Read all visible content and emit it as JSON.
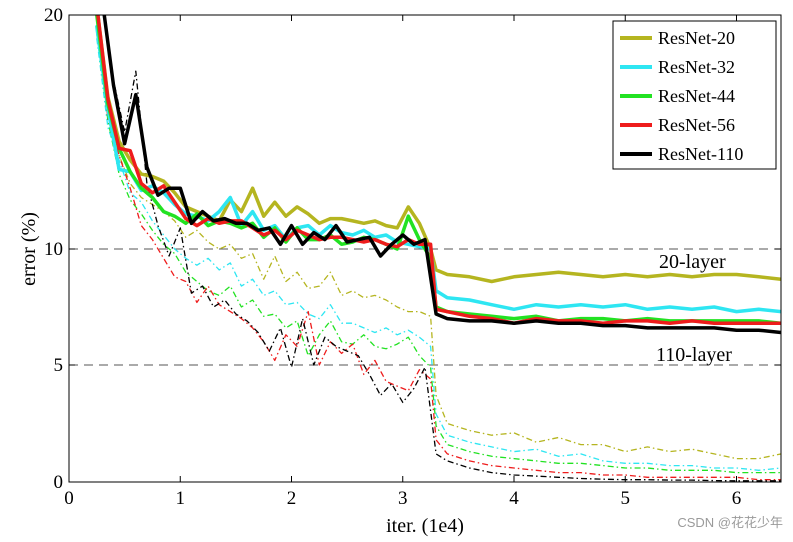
{
  "chart_data": {
    "type": "line",
    "xlabel": "iter. (1e4)",
    "ylabel": "error (%)",
    "xlim": [
      0,
      6.4
    ],
    "ylim": [
      0,
      20
    ],
    "x_ticks": [
      "0",
      "1",
      "2",
      "3",
      "4",
      "5",
      "6"
    ],
    "y_ticks": [
      "0",
      "5",
      "10",
      "20"
    ],
    "y_tick_values": [
      0,
      5,
      10,
      20
    ],
    "grid": "horizontal dashed at 5, 10, 20",
    "legend": "top-right",
    "annotations": [
      "20-layer",
      "110-layer"
    ],
    "series": [
      {
        "name": "ResNet-20",
        "color": "#b5b520",
        "test": {
          "x": [
            0.25,
            0.35,
            0.45,
            0.55,
            0.65,
            0.75,
            0.85,
            0.95,
            1.05,
            1.15,
            1.25,
            1.35,
            1.45,
            1.55,
            1.65,
            1.75,
            1.85,
            1.95,
            2.05,
            2.15,
            2.25,
            2.35,
            2.45,
            2.55,
            2.65,
            2.75,
            2.85,
            2.95,
            3.05,
            3.15,
            3.25,
            3.3,
            3.4,
            3.6,
            3.8,
            4.0,
            4.2,
            4.4,
            4.6,
            4.8,
            5.0,
            5.2,
            5.4,
            5.6,
            5.8,
            6.0,
            6.2,
            6.4
          ],
          "y": [
            20.4,
            16.5,
            14.6,
            13.8,
            13.2,
            13.1,
            12.9,
            12.4,
            11.8,
            11.6,
            11.4,
            11.2,
            12.1,
            11.6,
            12.6,
            11.4,
            12.0,
            11.4,
            11.8,
            11.5,
            11.1,
            11.3,
            11.3,
            11.2,
            11.1,
            11.2,
            11.0,
            10.9,
            11.8,
            11.1,
            10.0,
            9.1,
            8.9,
            8.8,
            8.6,
            8.8,
            8.9,
            9.0,
            8.9,
            8.8,
            8.9,
            8.8,
            8.9,
            8.8,
            8.9,
            8.9,
            8.8,
            8.7
          ]
        },
        "train": {
          "x": [
            0.25,
            0.35,
            0.45,
            0.55,
            0.65,
            0.75,
            0.85,
            0.95,
            1.05,
            1.15,
            1.25,
            1.35,
            1.45,
            1.55,
            1.65,
            1.75,
            1.85,
            1.95,
            2.05,
            2.15,
            2.25,
            2.35,
            2.45,
            2.55,
            2.65,
            2.75,
            2.85,
            2.95,
            3.05,
            3.15,
            3.25,
            3.3,
            3.4,
            3.6,
            3.8,
            4.0,
            4.2,
            4.4,
            4.6,
            4.8,
            5.0,
            5.2,
            5.4,
            5.6,
            5.8,
            6.0,
            6.2,
            6.4
          ],
          "y": [
            19.5,
            15.8,
            14.0,
            12.8,
            12.2,
            11.9,
            11.6,
            11.2,
            10.5,
            10.8,
            10.3,
            10.0,
            10.2,
            9.6,
            9.8,
            8.7,
            9.7,
            8.6,
            9.0,
            8.3,
            8.4,
            9.0,
            8.0,
            8.2,
            7.9,
            8.0,
            7.8,
            7.5,
            7.3,
            7.3,
            7.1,
            3.7,
            2.5,
            2.2,
            2.0,
            2.1,
            1.7,
            1.9,
            1.6,
            1.6,
            1.3,
            1.5,
            1.3,
            1.4,
            1.2,
            1.0,
            1.0,
            1.2
          ]
        }
      },
      {
        "name": "ResNet-32",
        "color": "#2ee6f2",
        "test": {
          "x": [
            0.25,
            0.35,
            0.45,
            0.55,
            0.65,
            0.75,
            0.85,
            0.95,
            1.05,
            1.15,
            1.25,
            1.35,
            1.45,
            1.55,
            1.65,
            1.75,
            1.85,
            1.95,
            2.05,
            2.15,
            2.25,
            2.35,
            2.45,
            2.55,
            2.65,
            2.75,
            2.85,
            2.95,
            3.05,
            3.15,
            3.25,
            3.3,
            3.4,
            3.6,
            3.8,
            4.0,
            4.2,
            4.4,
            4.6,
            4.8,
            5.0,
            5.2,
            5.4,
            5.6,
            5.8,
            6.0,
            6.2,
            6.4
          ],
          "y": [
            19.5,
            16.0,
            13.4,
            13.3,
            12.5,
            12.7,
            12.4,
            11.9,
            11.5,
            11.4,
            11.2,
            11.6,
            12.2,
            11.0,
            11.6,
            10.8,
            11.0,
            10.4,
            10.9,
            11.0,
            10.6,
            11.0,
            10.7,
            10.6,
            10.8,
            10.5,
            10.6,
            10.3,
            10.2,
            10.1,
            10.0,
            8.2,
            7.9,
            7.8,
            7.6,
            7.4,
            7.6,
            7.5,
            7.6,
            7.5,
            7.6,
            7.4,
            7.5,
            7.4,
            7.5,
            7.3,
            7.4,
            7.3
          ]
        },
        "train": {
          "x": [
            0.25,
            0.35,
            0.45,
            0.55,
            0.65,
            0.75,
            0.85,
            0.95,
            1.05,
            1.15,
            1.25,
            1.35,
            1.45,
            1.55,
            1.65,
            1.75,
            1.85,
            1.95,
            2.05,
            2.15,
            2.25,
            2.35,
            2.45,
            2.55,
            2.65,
            2.75,
            2.85,
            2.95,
            3.05,
            3.15,
            3.25,
            3.3,
            3.4,
            3.6,
            3.8,
            4.0,
            4.2,
            4.4,
            4.6,
            4.8,
            5.0,
            5.2,
            5.4,
            5.6,
            5.8,
            6.0,
            6.2,
            6.4
          ],
          "y": [
            19.0,
            15.2,
            13.8,
            12.4,
            12.0,
            11.2,
            10.6,
            10.0,
            9.6,
            9.3,
            9.6,
            9.1,
            9.4,
            8.4,
            8.7,
            8.0,
            8.2,
            7.6,
            7.7,
            7.2,
            7.0,
            7.6,
            6.8,
            6.8,
            6.6,
            6.4,
            6.6,
            6.3,
            6.5,
            6.2,
            5.8,
            2.9,
            2.0,
            1.7,
            1.5,
            1.3,
            1.4,
            1.1,
            1.2,
            0.9,
            0.8,
            0.8,
            0.7,
            0.7,
            0.6,
            0.6,
            0.5,
            0.6
          ]
        }
      },
      {
        "name": "ResNet-44",
        "color": "#22e222",
        "test": {
          "x": [
            0.25,
            0.35,
            0.45,
            0.55,
            0.65,
            0.75,
            0.85,
            0.95,
            1.05,
            1.15,
            1.25,
            1.35,
            1.45,
            1.55,
            1.65,
            1.75,
            1.85,
            1.95,
            2.05,
            2.15,
            2.25,
            2.35,
            2.45,
            2.55,
            2.65,
            2.75,
            2.85,
            2.95,
            3.05,
            3.15,
            3.25,
            3.3,
            3.4,
            3.6,
            3.8,
            4.0,
            4.2,
            4.4,
            4.6,
            4.8,
            5.0,
            5.2,
            5.4,
            5.6,
            5.8,
            6.0,
            6.2,
            6.4
          ],
          "y": [
            20.0,
            16.2,
            14.3,
            13.3,
            12.6,
            12.2,
            11.6,
            11.4,
            11.1,
            11.5,
            11.0,
            11.2,
            11.1,
            10.9,
            11.1,
            10.5,
            10.9,
            10.3,
            10.9,
            10.4,
            10.4,
            10.6,
            10.2,
            10.3,
            10.5,
            10.4,
            10.2,
            10.0,
            11.4,
            10.4,
            9.6,
            7.5,
            7.3,
            7.2,
            7.1,
            7.0,
            7.1,
            6.9,
            7.0,
            7.0,
            6.9,
            7.0,
            6.9,
            6.9,
            6.9,
            6.9,
            6.9,
            6.8
          ]
        },
        "train": {
          "x": [
            0.25,
            0.35,
            0.45,
            0.55,
            0.65,
            0.75,
            0.85,
            0.95,
            1.05,
            1.15,
            1.25,
            1.35,
            1.45,
            1.55,
            1.65,
            1.75,
            1.85,
            1.95,
            2.05,
            2.15,
            2.25,
            2.35,
            2.45,
            2.55,
            2.65,
            2.75,
            2.85,
            2.95,
            3.05,
            3.15,
            3.25,
            3.3,
            3.4,
            3.6,
            3.8,
            4.0,
            4.2,
            4.4,
            4.6,
            4.8,
            5.0,
            5.2,
            5.4,
            5.6,
            5.8,
            6.0,
            6.2,
            6.4
          ],
          "y": [
            19.2,
            15.5,
            13.2,
            12.1,
            11.5,
            10.8,
            10.2,
            9.8,
            9.0,
            8.6,
            8.2,
            8.0,
            8.4,
            7.5,
            7.8,
            7.1,
            7.2,
            6.6,
            6.9,
            5.4,
            6.3,
            6.9,
            6.0,
            5.9,
            6.3,
            5.8,
            5.7,
            5.9,
            6.2,
            5.4,
            4.9,
            2.4,
            1.6,
            1.3,
            1.1,
            1.0,
            0.9,
            0.8,
            0.8,
            0.7,
            0.6,
            0.6,
            0.5,
            0.5,
            0.5,
            0.4,
            0.4,
            0.4
          ]
        }
      },
      {
        "name": "ResNet-56",
        "color": "#ee1c1c",
        "test": {
          "x": [
            0.25,
            0.35,
            0.45,
            0.55,
            0.65,
            0.75,
            0.85,
            0.95,
            1.05,
            1.15,
            1.25,
            1.35,
            1.45,
            1.55,
            1.65,
            1.75,
            1.85,
            1.95,
            2.05,
            2.15,
            2.25,
            2.35,
            2.45,
            2.55,
            2.65,
            2.75,
            2.85,
            2.95,
            3.05,
            3.15,
            3.25,
            3.3,
            3.4,
            3.6,
            3.8,
            4.0,
            4.2,
            4.4,
            4.6,
            4.8,
            5.0,
            5.2,
            5.4,
            5.6,
            5.8,
            6.0,
            6.2,
            6.4
          ],
          "y": [
            20.4,
            16.4,
            14.3,
            14.2,
            12.8,
            12.4,
            12.7,
            12.0,
            11.3,
            11.0,
            11.3,
            11.1,
            11.2,
            11.2,
            10.9,
            10.6,
            10.8,
            10.4,
            10.8,
            10.6,
            10.4,
            10.5,
            10.5,
            10.4,
            10.3,
            10.4,
            10.2,
            10.1,
            10.4,
            10.2,
            10.2,
            7.4,
            7.3,
            7.1,
            7.0,
            6.8,
            7.0,
            6.9,
            6.9,
            6.8,
            6.9,
            6.9,
            6.8,
            6.9,
            6.8,
            6.8,
            6.8,
            6.8
          ]
        },
        "train": {
          "x": [
            0.25,
            0.35,
            0.45,
            0.55,
            0.65,
            0.75,
            0.85,
            0.95,
            1.05,
            1.15,
            1.25,
            1.35,
            1.45,
            1.55,
            1.65,
            1.75,
            1.85,
            1.95,
            2.05,
            2.15,
            2.25,
            2.35,
            2.45,
            2.55,
            2.65,
            2.75,
            2.85,
            2.95,
            3.05,
            3.15,
            3.25,
            3.3,
            3.4,
            3.6,
            3.8,
            4.0,
            4.2,
            4.4,
            4.6,
            4.8,
            5.0,
            5.2,
            5.4,
            5.6,
            5.8,
            6.0,
            6.2,
            6.4
          ],
          "y": [
            19.4,
            15.6,
            14.0,
            12.6,
            11.0,
            10.4,
            9.6,
            8.8,
            8.6,
            7.7,
            8.4,
            7.6,
            7.3,
            7.0,
            6.6,
            6.0,
            5.2,
            6.3,
            5.8,
            7.3,
            5.0,
            6.0,
            5.5,
            5.9,
            4.6,
            5.2,
            4.3,
            4.1,
            3.9,
            4.8,
            4.4,
            1.8,
            1.2,
            0.9,
            0.7,
            0.6,
            0.5,
            0.4,
            0.4,
            0.3,
            0.3,
            0.2,
            0.2,
            0.2,
            0.2,
            0.2,
            0.1,
            0.1
          ]
        }
      },
      {
        "name": "ResNet-110",
        "color": "#000000",
        "test": {
          "x": [
            0.3,
            0.4,
            0.5,
            0.6,
            0.7,
            0.8,
            0.9,
            1.0,
            1.1,
            1.2,
            1.3,
            1.4,
            1.5,
            1.6,
            1.7,
            1.8,
            1.9,
            2.0,
            2.1,
            2.2,
            2.3,
            2.4,
            2.5,
            2.6,
            2.7,
            2.8,
            2.9,
            3.0,
            3.1,
            3.2,
            3.3,
            3.4,
            3.6,
            3.8,
            4.0,
            4.2,
            4.4,
            4.6,
            4.8,
            5.0,
            5.2,
            5.4,
            5.6,
            5.8,
            6.0,
            6.2,
            6.4
          ],
          "y": [
            20.6,
            17.0,
            14.5,
            16.6,
            13.5,
            12.3,
            12.6,
            12.6,
            11.1,
            11.6,
            11.2,
            11.3,
            11.1,
            11.1,
            10.8,
            10.9,
            10.2,
            11.0,
            10.2,
            10.7,
            10.4,
            11.0,
            10.3,
            10.4,
            10.5,
            9.7,
            10.2,
            10.6,
            10.2,
            10.4,
            7.2,
            7.0,
            6.9,
            6.9,
            6.8,
            6.9,
            6.8,
            6.8,
            6.7,
            6.7,
            6.6,
            6.6,
            6.6,
            6.6,
            6.5,
            6.5,
            6.4
          ]
        },
        "train": {
          "x": [
            0.3,
            0.4,
            0.5,
            0.6,
            0.7,
            0.8,
            0.9,
            1.0,
            1.1,
            1.2,
            1.3,
            1.4,
            1.5,
            1.6,
            1.7,
            1.8,
            1.9,
            2.0,
            2.1,
            2.2,
            2.3,
            2.4,
            2.5,
            2.6,
            2.7,
            2.8,
            2.9,
            3.0,
            3.1,
            3.2,
            3.3,
            3.4,
            3.6,
            3.8,
            4.0,
            4.2,
            4.4,
            4.6,
            4.8,
            5.0,
            5.2,
            5.4,
            5.6,
            5.8,
            6.0,
            6.2,
            6.4
          ],
          "y": [
            20.4,
            17.2,
            15.0,
            17.6,
            12.8,
            11.0,
            9.7,
            10.9,
            8.1,
            8.4,
            7.5,
            7.8,
            7.2,
            6.9,
            6.4,
            5.6,
            6.6,
            4.9,
            7.0,
            5.0,
            6.2,
            5.8,
            5.6,
            5.4,
            4.6,
            3.7,
            4.2,
            3.4,
            4.0,
            4.9,
            1.2,
            0.9,
            0.6,
            0.4,
            0.3,
            0.25,
            0.2,
            0.15,
            0.12,
            0.1,
            0.1,
            0.08,
            0.08,
            0.06,
            0.05,
            0.05,
            0.05
          ]
        }
      }
    ]
  },
  "watermark": "CSDN @花花少年"
}
